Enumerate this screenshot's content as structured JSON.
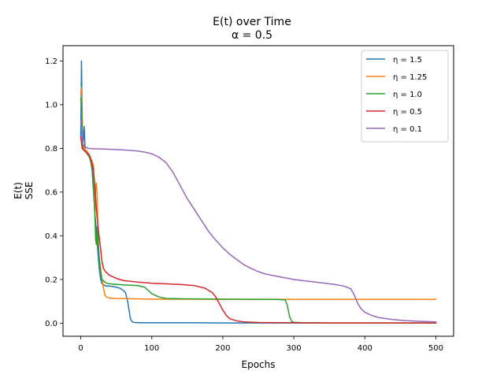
{
  "chart_data": {
    "type": "line",
    "title": "E(t) over Time",
    "subtitle": "α = 0.5",
    "xlabel": "Epochs",
    "ylabel": "E(t)",
    "ylabel2": "SSE",
    "xlim": [
      -25,
      525
    ],
    "ylim": [
      -0.06,
      1.27
    ],
    "xticks": [
      0,
      100,
      200,
      300,
      400,
      500
    ],
    "yticks": [
      0.0,
      0.2,
      0.4,
      0.6,
      0.8,
      1.0,
      1.2
    ],
    "grid": false,
    "legend_position": "top-right",
    "series": [
      {
        "name": "η = 1.5",
        "color": "#1f77b4",
        "x": [
          0,
          1,
          2,
          3,
          4,
          5,
          6,
          8,
          10,
          12,
          14,
          16,
          18,
          20,
          22,
          24,
          26,
          28,
          30,
          35,
          40,
          50,
          55,
          60,
          63,
          66,
          68,
          70,
          72,
          74,
          76,
          80,
          90,
          100,
          150,
          200,
          250,
          300,
          400,
          500
        ],
        "y": [
          0.85,
          1.2,
          0.95,
          0.82,
          0.85,
          0.9,
          0.8,
          0.78,
          0.78,
          0.77,
          0.74,
          0.7,
          0.6,
          0.5,
          0.42,
          0.33,
          0.25,
          0.2,
          0.18,
          0.17,
          0.17,
          0.165,
          0.16,
          0.15,
          0.14,
          0.1,
          0.06,
          0.02,
          0.008,
          0.004,
          0.003,
          0.002,
          0.002,
          0.002,
          0.002,
          0.001,
          0.001,
          0.001,
          0.001,
          0.001
        ]
      },
      {
        "name": "η = 1.25",
        "color": "#ff7f0e",
        "x": [
          0,
          1,
          2,
          3,
          5,
          8,
          12,
          16,
          18,
          20,
          21,
          22,
          23,
          24,
          25,
          26,
          28,
          30,
          32,
          34,
          36,
          40,
          50,
          100,
          200,
          300,
          400,
          500
        ],
        "y": [
          1.05,
          1.08,
          0.88,
          0.82,
          0.8,
          0.79,
          0.77,
          0.74,
          0.72,
          0.5,
          0.62,
          0.64,
          0.6,
          0.45,
          0.35,
          0.3,
          0.25,
          0.2,
          0.16,
          0.13,
          0.12,
          0.115,
          0.113,
          0.11,
          0.109,
          0.109,
          0.109,
          0.109
        ]
      },
      {
        "name": "η = 1.0",
        "color": "#2ca02c",
        "x": [
          0,
          1,
          2,
          3,
          5,
          8,
          12,
          16,
          18,
          20,
          21,
          22,
          23,
          24,
          26,
          28,
          30,
          35,
          40,
          60,
          80,
          90,
          95,
          100,
          110,
          120,
          150,
          200,
          250,
          280,
          288,
          291,
          294,
          297,
          300,
          310,
          350,
          400,
          500
        ],
        "y": [
          1.03,
          1.0,
          0.84,
          0.8,
          0.79,
          0.78,
          0.76,
          0.72,
          0.62,
          0.48,
          0.38,
          0.36,
          0.44,
          0.4,
          0.3,
          0.23,
          0.2,
          0.185,
          0.18,
          0.175,
          0.172,
          0.165,
          0.15,
          0.135,
          0.12,
          0.113,
          0.111,
          0.11,
          0.109,
          0.108,
          0.106,
          0.08,
          0.03,
          0.008,
          0.004,
          0.002,
          0.001,
          0.001,
          0.001
        ]
      },
      {
        "name": "η = 0.5",
        "color": "#d62728",
        "x": [
          0,
          2,
          5,
          8,
          12,
          15,
          18,
          20,
          22,
          25,
          28,
          30,
          32,
          35,
          40,
          50,
          60,
          80,
          100,
          120,
          140,
          160,
          175,
          185,
          190,
          195,
          200,
          205,
          210,
          220,
          230,
          250,
          280,
          300,
          350,
          400,
          500
        ],
        "y": [
          0.85,
          0.8,
          0.79,
          0.78,
          0.77,
          0.74,
          0.7,
          0.62,
          0.52,
          0.42,
          0.34,
          0.28,
          0.25,
          0.235,
          0.22,
          0.205,
          0.195,
          0.188,
          0.183,
          0.18,
          0.177,
          0.172,
          0.16,
          0.14,
          0.12,
          0.09,
          0.06,
          0.035,
          0.02,
          0.01,
          0.006,
          0.003,
          0.002,
          0.002,
          0.001,
          0.001,
          0.001
        ]
      },
      {
        "name": "η = 0.1",
        "color": "#9467bd",
        "x": [
          0,
          1,
          2,
          3,
          5,
          8,
          10,
          20,
          40,
          60,
          80,
          90,
          100,
          110,
          120,
          130,
          140,
          150,
          160,
          170,
          180,
          190,
          200,
          210,
          220,
          230,
          240,
          250,
          260,
          280,
          300,
          320,
          340,
          360,
          370,
          380,
          385,
          390,
          395,
          400,
          410,
          420,
          440,
          460,
          480,
          500
        ],
        "y": [
          0.93,
          0.9,
          0.85,
          0.82,
          0.81,
          0.805,
          0.8,
          0.798,
          0.796,
          0.793,
          0.788,
          0.783,
          0.775,
          0.76,
          0.735,
          0.69,
          0.63,
          0.57,
          0.52,
          0.47,
          0.42,
          0.38,
          0.345,
          0.315,
          0.29,
          0.267,
          0.25,
          0.236,
          0.225,
          0.212,
          0.2,
          0.192,
          0.184,
          0.176,
          0.17,
          0.158,
          0.13,
          0.09,
          0.065,
          0.05,
          0.035,
          0.025,
          0.016,
          0.011,
          0.008,
          0.006
        ]
      }
    ]
  }
}
